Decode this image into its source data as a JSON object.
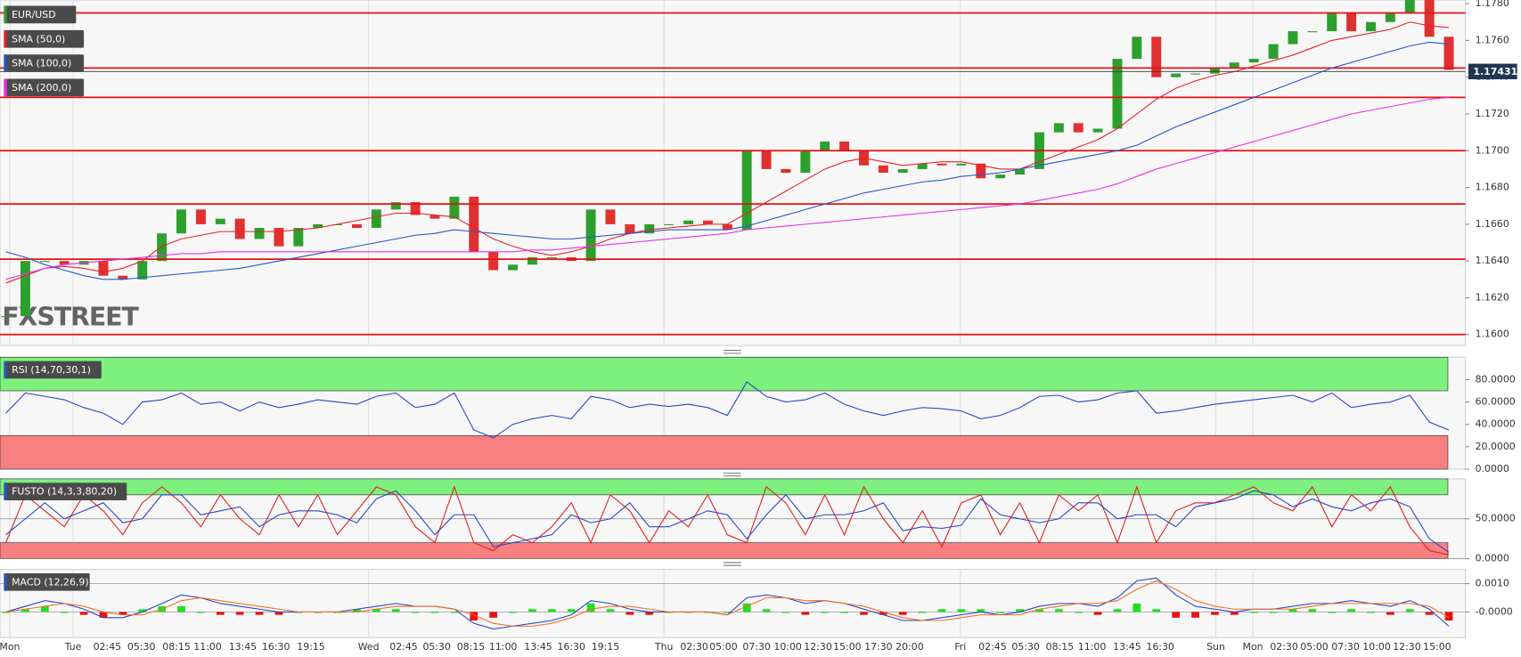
{
  "chart_data": [
    {
      "type": "candlestick",
      "title": "EUR/USD",
      "close": [
        1.161,
        1.164,
        1.164,
        1.1638,
        1.164,
        1.1632,
        1.163,
        1.164,
        1.1655,
        1.1668,
        1.166,
        1.1663,
        1.1652,
        1.1658,
        1.1648,
        1.1658,
        1.166,
        1.166,
        1.1658,
        1.1668,
        1.1672,
        1.1665,
        1.1663,
        1.1675,
        1.1645,
        1.1635,
        1.1638,
        1.1642,
        1.1642,
        1.164,
        1.1668,
        1.166,
        1.1655,
        1.166,
        1.166,
        1.1662,
        1.166,
        1.1657,
        1.17,
        1.169,
        1.1688,
        1.17,
        1.1705,
        1.17,
        1.1692,
        1.1688,
        1.169,
        1.1693,
        1.1692,
        1.1693,
        1.1685,
        1.1687,
        1.169,
        1.171,
        1.1715,
        1.171,
        1.1712,
        1.175,
        1.1762,
        1.174,
        1.1742,
        1.1742,
        1.1745,
        1.1748,
        1.175,
        1.1758,
        1.1765,
        1.1765,
        1.1775,
        1.1765,
        1.177,
        1.1775,
        1.1785,
        1.1762,
        1.1744
      ],
      "up_color": "#2ca02c",
      "down_color": "#e0302f",
      "series": [
        {
          "name": "SMA (50,0)",
          "color": "#e8202a",
          "values": [
            1.1628,
            1.1632,
            1.1636,
            1.1637,
            1.1636,
            1.1634,
            1.1636,
            1.164,
            1.1648,
            1.1652,
            1.1654,
            1.1656,
            1.1656,
            1.1656,
            1.1656,
            1.1657,
            1.1658,
            1.166,
            1.1662,
            1.1664,
            1.1666,
            1.1666,
            1.1665,
            1.1664,
            1.1658,
            1.1652,
            1.1648,
            1.1645,
            1.1643,
            1.1645,
            1.1648,
            1.1652,
            1.1655,
            1.1657,
            1.1658,
            1.1659,
            1.166,
            1.166,
            1.1666,
            1.1672,
            1.1678,
            1.1684,
            1.169,
            1.1694,
            1.1696,
            1.1694,
            1.1692,
            1.1693,
            1.1694,
            1.1694,
            1.1692,
            1.169,
            1.169,
            1.1694,
            1.1698,
            1.1702,
            1.1706,
            1.1712,
            1.172,
            1.1728,
            1.1734,
            1.1738,
            1.1741,
            1.1743,
            1.1746,
            1.1749,
            1.1752,
            1.1756,
            1.176,
            1.1762,
            1.1764,
            1.1766,
            1.177,
            1.1768,
            1.1767
          ]
        },
        {
          "name": "SMA (100,0)",
          "color": "#2458c8",
          "values": [
            1.1645,
            1.1642,
            1.1638,
            1.1635,
            1.1632,
            1.163,
            1.163,
            1.1631,
            1.1632,
            1.1633,
            1.1634,
            1.1635,
            1.1636,
            1.1638,
            1.164,
            1.1642,
            1.1644,
            1.1646,
            1.1648,
            1.165,
            1.1652,
            1.1654,
            1.1655,
            1.1657,
            1.1656,
            1.1655,
            1.1654,
            1.1653,
            1.1652,
            1.1652,
            1.1653,
            1.1654,
            1.1655,
            1.1656,
            1.1657,
            1.1657,
            1.1657,
            1.1657,
            1.1659,
            1.1662,
            1.1665,
            1.1668,
            1.1671,
            1.1674,
            1.1677,
            1.1679,
            1.1681,
            1.1683,
            1.1684,
            1.1686,
            1.1687,
            1.1688,
            1.169,
            1.1692,
            1.1694,
            1.1696,
            1.1698,
            1.17,
            1.1703,
            1.1708,
            1.1713,
            1.1717,
            1.1721,
            1.1725,
            1.1729,
            1.1733,
            1.1737,
            1.1741,
            1.1745,
            1.1748,
            1.1751,
            1.1754,
            1.1757,
            1.1759,
            1.1758
          ]
        },
        {
          "name": "SMA (200,0)",
          "color": "#e830e8",
          "values": [
            1.163,
            1.1633,
            1.1636,
            1.1638,
            1.1639,
            1.164,
            1.1641,
            1.1642,
            1.1643,
            1.1644,
            1.1644,
            1.1645,
            1.1645,
            1.1645,
            1.1645,
            1.1645,
            1.1645,
            1.1645,
            1.1645,
            1.1645,
            1.1645,
            1.1645,
            1.1645,
            1.1645,
            1.1645,
            1.1645,
            1.1645,
            1.1646,
            1.1646,
            1.1647,
            1.1648,
            1.1649,
            1.165,
            1.1651,
            1.1652,
            1.1653,
            1.1654,
            1.1655,
            1.1657,
            1.1658,
            1.1659,
            1.166,
            1.1661,
            1.1662,
            1.1663,
            1.1664,
            1.1665,
            1.1666,
            1.1667,
            1.1668,
            1.1669,
            1.167,
            1.1671,
            1.1673,
            1.1675,
            1.1677,
            1.1679,
            1.1682,
            1.1686,
            1.169,
            1.1693,
            1.1696,
            1.1699,
            1.1702,
            1.1705,
            1.1708,
            1.1711,
            1.1714,
            1.1717,
            1.172,
            1.1722,
            1.1724,
            1.1726,
            1.1728,
            1.1729
          ]
        }
      ],
      "levels": [
        1.1775,
        1.1745,
        1.1729,
        1.17,
        1.1671,
        1.1641,
        1.16
      ],
      "level_color": "#e81010",
      "last_price": 1.17431,
      "ylim": [
        1.1594,
        1.1782
      ],
      "yticks": [
        {
          "value": 1.16,
          "label": "1.1600"
        },
        {
          "value": 1.162,
          "label": "1.1620"
        },
        {
          "value": 1.164,
          "label": "1.1640"
        },
        {
          "value": 1.166,
          "label": "1.1660"
        },
        {
          "value": 1.168,
          "label": "1.1680"
        },
        {
          "value": 1.17,
          "label": "1.1700"
        },
        {
          "value": 1.172,
          "label": "1.1720"
        },
        {
          "value": 1.174,
          "label": "1.1740"
        },
        {
          "value": 1.176,
          "label": "1.1760"
        },
        {
          "value": 1.178,
          "label": "1.1780"
        }
      ],
      "watermark": "FXSTREET"
    },
    {
      "type": "line",
      "title": "RSI (14,70,30,1)",
      "bands": [
        {
          "range": [
            70,
            100
          ],
          "color": "#7ef07e"
        },
        {
          "range": [
            0,
            30
          ],
          "color": "#f88080"
        }
      ],
      "series": [
        {
          "color": "#2846c8",
          "values": [
            50,
            68,
            65,
            62,
            55,
            50,
            40,
            60,
            62,
            68,
            58,
            60,
            52,
            60,
            55,
            58,
            62,
            60,
            58,
            65,
            68,
            55,
            58,
            68,
            35,
            28,
            40,
            45,
            48,
            45,
            65,
            62,
            55,
            58,
            56,
            58,
            55,
            48,
            78,
            65,
            60,
            62,
            68,
            58,
            52,
            48,
            52,
            55,
            54,
            52,
            45,
            48,
            55,
            65,
            66,
            60,
            62,
            68,
            70,
            50,
            52,
            55,
            58,
            60,
            62,
            64,
            66,
            60,
            68,
            55,
            58,
            60,
            66,
            42,
            35
          ]
        }
      ],
      "ylim": [
        0,
        100
      ],
      "yticks": [
        {
          "value": 0,
          "label": "0.0000"
        },
        {
          "value": 20,
          "label": "20.0000"
        },
        {
          "value": 40,
          "label": "40.0000"
        },
        {
          "value": 60,
          "label": "60.0000"
        },
        {
          "value": 80,
          "label": "80.0000"
        }
      ]
    },
    {
      "type": "line",
      "title": "FUSTO (14,3,3,80,20)",
      "bands": [
        {
          "range": [
            80,
            100
          ],
          "color": "#7ef07e"
        },
        {
          "range": [
            0,
            20
          ],
          "color": "#f88080"
        }
      ],
      "series": [
        {
          "color": "#e02020",
          "values": [
            20,
            80,
            60,
            40,
            80,
            60,
            30,
            70,
            90,
            70,
            40,
            80,
            50,
            30,
            80,
            40,
            80,
            30,
            60,
            90,
            80,
            40,
            20,
            90,
            20,
            10,
            30,
            20,
            40,
            70,
            20,
            80,
            60,
            20,
            60,
            40,
            80,
            30,
            20,
            90,
            70,
            30,
            80,
            30,
            90,
            50,
            20,
            60,
            15,
            70,
            80,
            30,
            70,
            20,
            80,
            60,
            80,
            20,
            90,
            20,
            60,
            70,
            70,
            80,
            90,
            70,
            60,
            90,
            40,
            80,
            60,
            90,
            40,
            10,
            5
          ]
        },
        {
          "color": "#2846c8",
          "values": [
            30,
            50,
            70,
            50,
            60,
            70,
            45,
            50,
            80,
            80,
            55,
            60,
            65,
            40,
            55,
            60,
            60,
            55,
            45,
            75,
            85,
            60,
            30,
            55,
            55,
            15,
            20,
            25,
            30,
            55,
            45,
            50,
            70,
            40,
            40,
            50,
            60,
            55,
            25,
            55,
            80,
            50,
            55,
            55,
            60,
            70,
            35,
            40,
            38,
            42,
            75,
            55,
            50,
            45,
            50,
            70,
            70,
            50,
            55,
            55,
            40,
            65,
            70,
            75,
            85,
            80,
            65,
            75,
            65,
            60,
            70,
            75,
            65,
            25,
            8
          ]
        }
      ],
      "ylim": [
        0,
        100
      ],
      "yticks": [
        {
          "value": 0,
          "label": "0.0000"
        },
        {
          "value": 50,
          "label": "50.0000"
        }
      ],
      "grid": true
    },
    {
      "type": "line",
      "title": "MACD (12,26,9)",
      "histogram": {
        "values": [
          0,
          0.0001,
          0.0002,
          0,
          -0.0001,
          -0.0002,
          -0.0001,
          0.0001,
          0.0002,
          0.0002,
          0,
          -0.0001,
          -0.0001,
          -0.0001,
          -0.0001,
          0,
          0,
          0,
          0.0001,
          0.0001,
          0.0001,
          0,
          0,
          0,
          -0.0003,
          -0.0002,
          0,
          0.0001,
          0.0001,
          0.0001,
          0.0003,
          0.0001,
          -0.0001,
          -0.0001,
          0,
          0,
          0,
          0,
          0.0003,
          0.0001,
          0,
          -0.0001,
          0,
          0,
          -0.0001,
          -0.0001,
          -0.0001,
          0,
          0.0001,
          0.0001,
          0.0001,
          0,
          0.0001,
          0.0001,
          0.0001,
          0,
          -0.0001,
          0.0001,
          0.0003,
          0.0001,
          -0.0002,
          -0.0002,
          -0.0001,
          -0.0001,
          0,
          0,
          0.0001,
          0.0001,
          0,
          0.0001,
          0,
          -0.0001,
          0.0001,
          -0.0001,
          -0.0003
        ],
        "colors": [
          "#1ee01e",
          "#e81010"
        ]
      },
      "series": [
        {
          "color": "#2846c8",
          "values": [
            0,
            0.0002,
            0.0004,
            0.0003,
            0.0001,
            -0.0002,
            -0.0002,
            0,
            0.0003,
            0.0006,
            0.0005,
            0.0003,
            0.0002,
            0.0001,
            0,
            0,
            0,
            0,
            0.0001,
            0.0002,
            0.0003,
            0.0002,
            0.0002,
            0.0001,
            -0.0004,
            -0.0006,
            -0.0005,
            -0.0004,
            -0.0003,
            -0.0001,
            0.0004,
            0.0003,
            0.0001,
            0,
            0,
            0,
            0,
            -0.0001,
            0.0005,
            0.0006,
            0.0005,
            0.0003,
            0.0004,
            0.0003,
            0.0001,
            -0.0001,
            -0.0003,
            -0.0003,
            -0.0002,
            -0.0001,
            0,
            -0.0001,
            0,
            0.0002,
            0.0003,
            0.0003,
            0.0002,
            0.0005,
            0.0011,
            0.0012,
            0.0006,
            0.0002,
            0.0001,
            0,
            0.0001,
            0.0001,
            0.0002,
            0.0003,
            0.0003,
            0.0004,
            0.0003,
            0.0002,
            0.0004,
            0.0001,
            -0.0005
          ]
        },
        {
          "color": "#f07020",
          "values": [
            0,
            0.0001,
            0.0002,
            0.0003,
            0.0002,
            0,
            -0.0001,
            -0.0001,
            0.0001,
            0.0004,
            0.0005,
            0.0004,
            0.0003,
            0.0002,
            0.0001,
            0,
            0,
            0,
            0,
            0.0001,
            0.0002,
            0.0002,
            0.0002,
            0.0001,
            -0.0001,
            -0.0004,
            -0.0005,
            -0.0005,
            -0.0004,
            -0.0002,
            0.0001,
            0.0002,
            0.0002,
            0.0001,
            0,
            0,
            0,
            -0.0001,
            0.0002,
            0.0005,
            0.0005,
            0.0004,
            0.0004,
            0.0003,
            0.0002,
            0,
            -0.0002,
            -0.0003,
            -0.0003,
            -0.0002,
            -0.0001,
            -0.0001,
            -0.0001,
            0.0001,
            0.0002,
            0.0003,
            0.0003,
            0.0004,
            0.0008,
            0.0011,
            0.0008,
            0.0004,
            0.0002,
            0.0001,
            0.0001,
            0.0001,
            0.0001,
            0.0002,
            0.0003,
            0.0003,
            0.0003,
            0.0003,
            0.0003,
            0.0002,
            -0.0002
          ]
        }
      ],
      "ylim": [
        -0.0009,
        0.0015
      ],
      "yticks": [
        {
          "value": 0,
          "label": "-0.0000"
        },
        {
          "value": 0.001,
          "label": "0.0010"
        }
      ],
      "grid": true,
      "time_labels": [
        "Mon",
        "Tue",
        "02:45",
        "05:30",
        "08:15",
        "11:00",
        "13:45",
        "16:30",
        "19:15",
        "Wed",
        "02:45",
        "05:30",
        "08:15",
        "11:00",
        "13:45",
        "16:30",
        "19:15",
        "Thu",
        "02:30",
        "05:00",
        "07:30",
        "10:00",
        "12:30",
        "15:00",
        "17:30",
        "20:00",
        "Fri",
        "02:45",
        "05:30",
        "08:15",
        "11:00",
        "13:45",
        "16:30",
        "Sun",
        "Mon",
        "02:30",
        "05:00",
        "07:30",
        "10:00",
        "12:30",
        "15:00"
      ]
    }
  ]
}
